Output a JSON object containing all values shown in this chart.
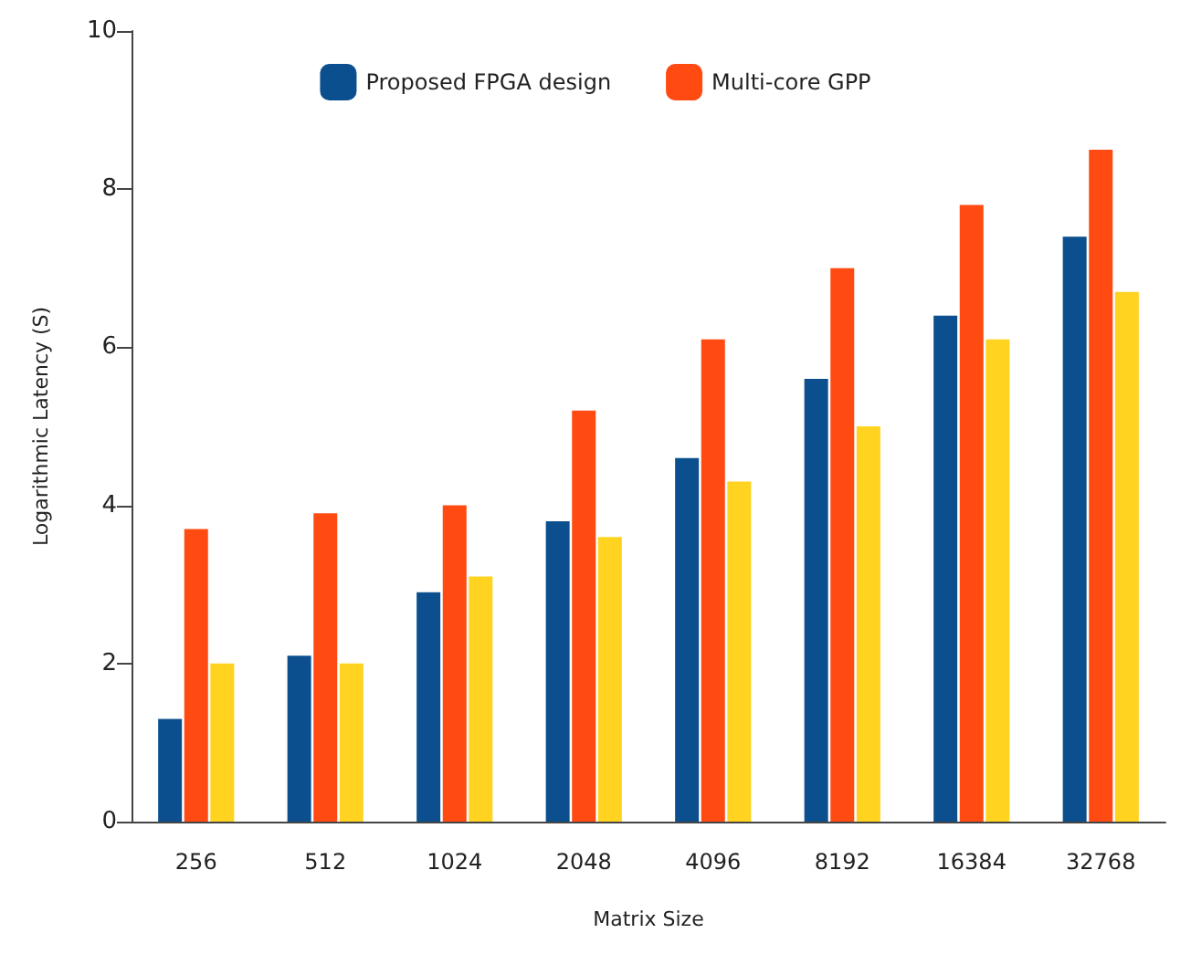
{
  "chart_data": {
    "type": "bar",
    "xlabel": "Matrix Size",
    "ylabel": "Logarithmic Latency (S)",
    "categories": [
      "256",
      "512",
      "1024",
      "2048",
      "4096",
      "8192",
      "16384",
      "32768"
    ],
    "series": [
      {
        "name": "Proposed FPGA design",
        "color": "#0b4f8e",
        "values": [
          1.3,
          2.1,
          2.9,
          3.8,
          4.6,
          5.6,
          6.4,
          7.4
        ]
      },
      {
        "name": "Multi-core GPP",
        "color": "#ff4a12",
        "values": [
          3.7,
          3.9,
          4.0,
          5.2,
          6.1,
          7.0,
          7.8,
          8.5
        ]
      },
      {
        "color": "#ffd320",
        "values": [
          2.0,
          2.0,
          3.1,
          3.6,
          4.3,
          5.0,
          6.1,
          6.7
        ]
      }
    ],
    "ylim": [
      0,
      10
    ],
    "yticks": [
      0,
      2,
      4,
      6,
      8,
      10
    ],
    "grid": false,
    "legend": "top"
  }
}
